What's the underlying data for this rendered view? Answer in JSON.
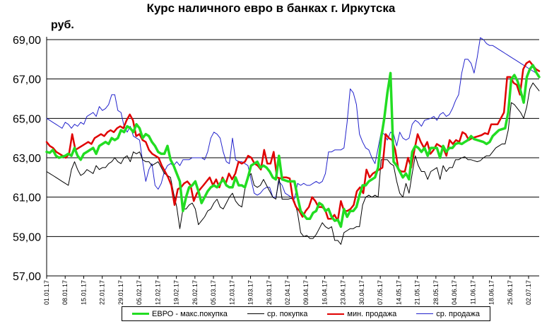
{
  "title": "Курс наличного евро в банках г. Иркутска",
  "unit": "руб.",
  "chart_data": {
    "type": "line",
    "title": "Курс наличного евро в банках г. Иркутска",
    "ylabel": "руб.",
    "ylim": [
      57,
      69
    ],
    "yticks": [
      "57,00",
      "59,00",
      "61,00",
      "63,00",
      "65,00",
      "67,00",
      "69,00"
    ],
    "grid": true,
    "legend_position": "bottom",
    "x_ticks": [
      "01.01.17",
      "08.01.17",
      "15.01.17",
      "22.01.17",
      "29.01.17",
      "05.02.17",
      "12.02.17",
      "19.02.17",
      "26.02.17",
      "05.03.17",
      "12.03.17",
      "19.03.17",
      "26.03.17",
      "02.04.17",
      "09.04.17",
      "16.04.17",
      "23.04.17",
      "30.04.17",
      "07.05.17",
      "14.05.17",
      "21.05.17",
      "28.05.17",
      "04.06.17",
      "11.06.17",
      "18.06.17",
      "25.06.17",
      "02.07.17"
    ],
    "x_start": "01.01.17",
    "series": [
      {
        "name": "ЕВРО - макс.покупка",
        "color": "#22dd22",
        "width": 3.5,
        "values": [
          63.3,
          63.25,
          63.4,
          63.1,
          63.0,
          63.05,
          63.1,
          63.2,
          63.1,
          63.5,
          63.1,
          62.9,
          63.2,
          63.3,
          63.4,
          63.5,
          63.2,
          63.6,
          63.7,
          63.8,
          63.7,
          64.0,
          63.9,
          64.0,
          64.4,
          64.3,
          64.6,
          64.5,
          64.3,
          64.7,
          64.5,
          64.0,
          64.2,
          64.1,
          63.8,
          63.6,
          63.3,
          63.2,
          63.2,
          63.6,
          62.9,
          62.6,
          62.2,
          61.8,
          60.3,
          61.0,
          61.5,
          61.6,
          61.8,
          61.3,
          60.7,
          61.0,
          61.3,
          61.5,
          61.6,
          61.5,
          61.7,
          61.9,
          61.6,
          61.5,
          61.5,
          62.0,
          61.6,
          61.6,
          61.5,
          62.0,
          62.6,
          62.7,
          62.8,
          62.5,
          62.6,
          62.5,
          62.3,
          62.0,
          61.9,
          63.1,
          61.9,
          61.85,
          61.8,
          61.8,
          61.8,
          61.0,
          60.3,
          60.1,
          59.9,
          59.9,
          60.2,
          60.3,
          60.7,
          60.6,
          60.3,
          60.4,
          60.0,
          59.8,
          59.85,
          59.5,
          60.4,
          60.0,
          60.3,
          60.3,
          60.5,
          61.1,
          61.6,
          61.6,
          61.8,
          61.9,
          62.0,
          62.5,
          64.0,
          65.0,
          66.3,
          67.3,
          62.8,
          62.6,
          62.3,
          62.0,
          62.2,
          61.9,
          63.3,
          63.6,
          63.5,
          63.3,
          63.5,
          63.1,
          63.5,
          63.5,
          63.5,
          63.0,
          63.6,
          63.3,
          63.5,
          63.5,
          63.7,
          63.75,
          63.7,
          63.8,
          63.9,
          64.1,
          63.95,
          63.9,
          63.85,
          63.8,
          63.7,
          63.8,
          64.1,
          64.25,
          64.4,
          64.45,
          64.5,
          65.3,
          67.0,
          67.2,
          66.9,
          66.4,
          65.8,
          67.1,
          67.5,
          67.7,
          67.35,
          67.1
        ]
      },
      {
        "name": "ср. покупка",
        "color": "#000000",
        "width": 1,
        "values": [
          62.3,
          62.2,
          62.1,
          62.0,
          61.9,
          61.8,
          61.7,
          61.6,
          62.4,
          62.8,
          62.4,
          62.1,
          62.2,
          62.4,
          62.3,
          62.2,
          62.6,
          62.4,
          62.5,
          62.5,
          62.7,
          62.8,
          63.0,
          62.8,
          62.7,
          63.0,
          63.1,
          62.8,
          63.3,
          63.2,
          63.3,
          62.9,
          62.8,
          62.8,
          62.6,
          62.7,
          62.8,
          62.5,
          62.2,
          62.1,
          62.0,
          61.2,
          60.5,
          59.4,
          60.4,
          60.4,
          60.6,
          60.7,
          60.4,
          59.6,
          59.8,
          60.0,
          60.3,
          60.4,
          60.7,
          60.9,
          60.5,
          60.4,
          60.7,
          61.0,
          61.2,
          60.8,
          60.6,
          60.5,
          61.4,
          62.0,
          62.2,
          61.6,
          61.5,
          61.6,
          61.9,
          61.6,
          61.3,
          61.0,
          60.9,
          62.0,
          60.9,
          60.9,
          60.9,
          60.95,
          60.8,
          60.2,
          59.2,
          59.0,
          59.05,
          58.9,
          58.9,
          59.1,
          59.4,
          59.7,
          59.5,
          59.4,
          59.5,
          58.8,
          58.8,
          58.6,
          59.2,
          59.3,
          59.4,
          59.4,
          59.5,
          59.5,
          60.6,
          61.0,
          61.1,
          61.0,
          61.1,
          61.0,
          62.9,
          62.9,
          62.9,
          62.7,
          62.6,
          61.8,
          61.2,
          61.0,
          61.7,
          61.2,
          62.2,
          63.1,
          62.6,
          62.3,
          62.3,
          61.9,
          62.3,
          62.4,
          62.5,
          61.9,
          62.6,
          62.3,
          62.5,
          62.5,
          62.9,
          62.9,
          63.0,
          63.05,
          62.9,
          62.9,
          62.85,
          62.8,
          62.85,
          63.0,
          63.1,
          63.1,
          63.3,
          63.5,
          63.6,
          63.7,
          63.7,
          64.4,
          65.8,
          65.7,
          65.5,
          65.3,
          65.0,
          65.6,
          66.5,
          66.8,
          66.6,
          66.4
        ]
      },
      {
        "name": "мин. продажа",
        "color": "#e00000",
        "width": 2.5,
        "values": [
          63.8,
          63.6,
          63.5,
          63.3,
          63.2,
          63.1,
          63.0,
          63.2,
          64.2,
          63.4,
          63.5,
          63.6,
          63.7,
          63.8,
          63.7,
          64.0,
          64.1,
          64.2,
          64.1,
          64.3,
          64.4,
          64.3,
          64.5,
          64.6,
          64.5,
          64.9,
          65.2,
          64.9,
          64.1,
          64.2,
          63.9,
          63.8,
          63.4,
          63.2,
          63.1,
          63.0,
          62.6,
          62.3,
          62.0,
          61.6,
          60.6,
          61.4,
          61.5,
          61.7,
          61.8,
          61.6,
          60.8,
          61.2,
          61.4,
          61.6,
          61.8,
          62.0,
          61.6,
          61.9,
          61.5,
          62.0,
          61.7,
          62.2,
          61.9,
          62.2,
          62.8,
          62.7,
          62.8,
          63.1,
          63.0,
          62.7,
          62.6,
          62.4,
          63.4,
          62.7,
          62.7,
          63.3,
          62.0,
          61.95,
          62.0,
          62.0,
          61.95,
          60.9,
          60.5,
          60.3,
          60.0,
          60.3,
          60.5,
          61.0,
          60.8,
          60.5,
          60.5,
          60.4,
          59.9,
          59.9,
          60.1,
          59.8,
          60.8,
          60.3,
          60.3,
          60.4,
          60.6,
          61.3,
          61.5,
          61.2,
          62.4,
          62.0,
          62.2,
          62.3,
          62.4,
          62.5,
          64.2,
          64.0,
          63.9,
          63.4,
          62.4,
          62.3,
          62.3,
          63.0,
          62.5,
          63.4,
          64.2,
          63.8,
          63.5,
          63.8,
          63.2,
          63.4,
          63.7,
          63.6,
          63.5,
          63.1,
          63.9,
          63.7,
          63.9,
          63.8,
          64.3,
          64.2,
          63.9,
          64.0,
          64.05,
          64.1,
          64.15,
          64.25,
          64.2,
          64.7,
          64.7,
          64.7,
          65.0,
          65.3,
          67.1,
          67.1,
          66.8,
          66.7,
          66.2,
          67.5,
          67.8,
          67.9,
          67.7,
          67.5,
          67.4
        ]
      },
      {
        "name": "ср. продажа",
        "color": "#2222cc",
        "width": 1,
        "values": [
          65.0,
          64.9,
          64.8,
          64.7,
          64.6,
          64.5,
          64.8,
          64.7,
          64.5,
          64.7,
          64.6,
          64.8,
          64.7,
          65.1,
          65.2,
          65.3,
          65.1,
          65.6,
          65.4,
          65.5,
          65.7,
          66.2,
          66.2,
          65.4,
          65.3,
          64.6,
          64.3,
          64.6,
          64.1,
          64.0,
          63.9,
          62.8,
          61.8,
          62.4,
          62.7,
          61.6,
          61.4,
          61.7,
          62.3,
          62.6,
          62.7,
          62.6,
          62.8,
          62.6,
          62.9,
          62.9,
          62.9,
          63.0,
          63.0,
          63.0,
          63.0,
          62.9,
          63.3,
          64.0,
          64.3,
          64.2,
          64.0,
          63.3,
          62.8,
          62.7,
          64.0,
          62.9,
          62.8,
          62.8,
          62.7,
          62.6,
          61.9,
          61.2,
          61.1,
          61.2,
          61.4,
          61.5,
          61.5,
          61.0,
          61.0,
          61.8,
          61.6,
          61.2,
          61.1,
          61.0,
          60.9,
          61.7,
          61.6,
          61.7,
          61.6,
          61.6,
          61.7,
          61.8,
          61.7,
          61.8,
          62.2,
          63.3,
          63.3,
          63.4,
          63.4,
          63.4,
          63.5,
          64.8,
          66.5,
          66.3,
          65.7,
          64.2,
          63.8,
          63.5,
          63.4,
          63.0,
          62.7,
          63.5,
          64.3,
          64.2,
          63.9,
          64.3,
          64.2,
          63.6,
          64.3,
          64.0,
          63.9,
          64.0,
          64.7,
          64.9,
          64.8,
          64.6,
          64.9,
          64.95,
          65.0,
          65.1,
          64.9,
          65.2,
          65.3,
          65.1,
          65.2,
          65.5,
          65.9,
          66.2,
          67.3,
          68.0,
          68.0,
          67.8,
          67.3,
          68.1,
          69.1,
          69.0,
          68.8,
          68.7,
          68.7,
          68.6,
          68.5,
          68.4,
          68.3,
          68.2,
          68.1,
          68.0,
          67.9,
          67.8,
          67.7,
          67.6,
          67.5,
          67.4,
          67.3,
          67.2
        ]
      }
    ]
  },
  "legend": {
    "items": [
      {
        "label": "ЕВРО - макс.покупка",
        "color": "#22dd22"
      },
      {
        "label": "ср. покупка",
        "color": "#000000"
      },
      {
        "label": "мин. продажа",
        "color": "#e00000"
      },
      {
        "label": "ср. продажа",
        "color": "#2222cc"
      }
    ]
  }
}
